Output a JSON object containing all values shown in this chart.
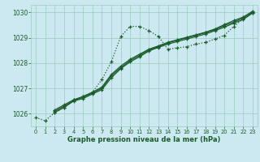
{
  "xlabel": "Graphe pression niveau de la mer (hPa)",
  "bg_color": "#cce8f0",
  "grid_color": "#99ccbb",
  "line_color": "#1a5c2a",
  "xlim": [
    -0.5,
    23.5
  ],
  "ylim": [
    1025.5,
    1030.3
  ],
  "yticks": [
    1026,
    1027,
    1028,
    1029,
    1030
  ],
  "xticks": [
    0,
    1,
    2,
    3,
    4,
    5,
    6,
    7,
    8,
    9,
    10,
    11,
    12,
    13,
    14,
    15,
    16,
    17,
    18,
    19,
    20,
    21,
    22,
    23
  ],
  "line1_x": [
    0,
    1,
    2,
    3,
    4,
    5,
    6,
    7,
    8,
    9,
    10,
    11,
    12,
    13,
    14,
    15,
    16,
    17,
    18,
    19,
    20,
    21,
    22,
    23
  ],
  "line1_y": [
    1025.85,
    1025.72,
    1026.05,
    1026.25,
    1026.55,
    1026.68,
    1026.85,
    1027.35,
    1028.05,
    1029.05,
    1029.45,
    1029.45,
    1029.28,
    1029.05,
    1028.55,
    1028.6,
    1028.65,
    1028.75,
    1028.82,
    1028.95,
    1029.1,
    1029.45,
    1029.75,
    1029.98
  ],
  "line2_x": [
    2,
    3,
    4,
    5,
    6,
    7,
    8,
    9,
    10,
    11,
    12,
    13,
    14,
    15,
    16,
    17,
    18,
    19,
    20,
    21,
    22,
    23
  ],
  "line2_y": [
    1026.05,
    1026.25,
    1026.5,
    1026.6,
    1026.78,
    1026.95,
    1027.42,
    1027.78,
    1028.05,
    1028.25,
    1028.48,
    1028.62,
    1028.75,
    1028.85,
    1028.95,
    1029.05,
    1029.15,
    1029.28,
    1029.42,
    1029.58,
    1029.72,
    1029.98
  ],
  "line3_x": [
    2,
    3,
    4,
    5,
    6,
    7,
    8,
    9,
    10,
    11,
    12,
    13,
    14,
    15,
    16,
    17,
    18,
    19,
    20,
    21,
    22,
    23
  ],
  "line3_y": [
    1026.1,
    1026.3,
    1026.52,
    1026.65,
    1026.82,
    1027.0,
    1027.5,
    1027.82,
    1028.1,
    1028.3,
    1028.52,
    1028.65,
    1028.8,
    1028.9,
    1029.0,
    1029.1,
    1029.2,
    1029.32,
    1029.48,
    1029.62,
    1029.78,
    1030.02
  ],
  "line4_x": [
    2,
    3,
    4,
    5,
    6,
    7,
    8,
    9,
    10,
    11,
    12,
    13,
    14,
    15,
    16,
    17,
    18,
    19,
    20,
    21,
    22,
    23
  ],
  "line4_y": [
    1026.15,
    1026.35,
    1026.55,
    1026.68,
    1026.85,
    1027.05,
    1027.55,
    1027.88,
    1028.15,
    1028.35,
    1028.55,
    1028.68,
    1028.82,
    1028.92,
    1029.02,
    1029.12,
    1029.22,
    1029.35,
    1029.52,
    1029.68,
    1029.82,
    1030.05
  ]
}
